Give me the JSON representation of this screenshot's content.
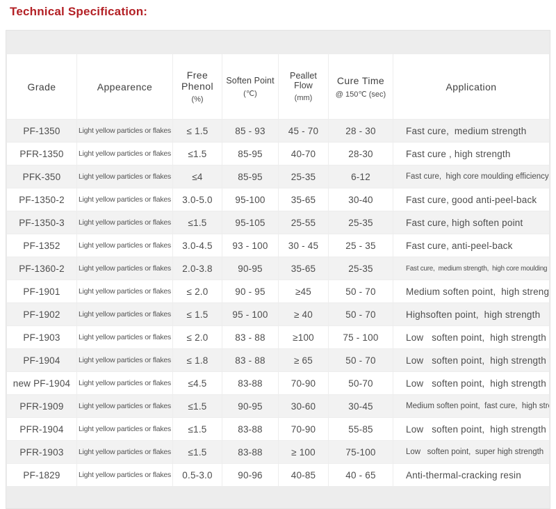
{
  "page": {
    "title": "Technical Specification:"
  },
  "colors": {
    "title_red": "#b32025",
    "panel_background": "#ededed",
    "row_alternate": "#f2f2f2",
    "row_white": "#ffffff",
    "text": "#4a4a4a"
  },
  "table": {
    "columns": [
      {
        "key": "grade",
        "label": "Grade",
        "unit": ""
      },
      {
        "key": "appearance",
        "label": "Appearence",
        "unit": ""
      },
      {
        "key": "free_phenol",
        "label": "Free Phenol",
        "unit": "(%)"
      },
      {
        "key": "soften_point",
        "label": "Soften Point",
        "unit": "(℃)"
      },
      {
        "key": "peallet_flow",
        "label": "Peallet Flow",
        "unit": "(mm)"
      },
      {
        "key": "cure_time",
        "label": "Cure Time",
        "unit": "@ 150℃ (sec)"
      },
      {
        "key": "application",
        "label": "Application",
        "unit": ""
      }
    ],
    "rows": [
      {
        "grade": "PF-1350",
        "appearance": "Light yellow particles or flakes",
        "free_phenol": "≤ 1.5",
        "soften_point": "85 - 93",
        "peallet_flow": "45 - 70",
        "cure_time": "28 - 30",
        "application": "Fast cure,  medium strength"
      },
      {
        "grade": "PFR-1350",
        "appearance": "Light yellow particles or flakes",
        "free_phenol": "≤1.5",
        "soften_point": "85-95",
        "peallet_flow": "40-70",
        "cure_time": "28-30",
        "application": "Fast cure , high strength"
      },
      {
        "grade": "PFK-350",
        "appearance": "Light yellow particles or flakes",
        "free_phenol": "≤4",
        "soften_point": "85-95",
        "peallet_flow": "25-35",
        "cure_time": "6-12",
        "application": "Fast cure,  high core moulding efficiency"
      },
      {
        "grade": "PF-1350-2",
        "appearance": "Light yellow particles or flakes",
        "free_phenol": "3.0-5.0",
        "soften_point": "95-100",
        "peallet_flow": "35-65",
        "cure_time": "30-40",
        "application": "Fast cure, good anti-peel-back"
      },
      {
        "grade": "PF-1350-3",
        "appearance": "Light yellow particles or flakes",
        "free_phenol": "≤1.5",
        "soften_point": "95-105",
        "peallet_flow": "25-55",
        "cure_time": "25-35",
        "application": "Fast cure, high soften point"
      },
      {
        "grade": "PF-1352",
        "appearance": "Light yellow particles or flakes",
        "free_phenol": "3.0-4.5",
        "soften_point": "93 - 100",
        "peallet_flow": "30 - 45",
        "cure_time": "25 - 35",
        "application": "Fast cure, anti-peel-back"
      },
      {
        "grade": "PF-1360-2",
        "appearance": "Light yellow particles or flakes",
        "free_phenol": "2.0-3.8",
        "soften_point": "90-95",
        "peallet_flow": "35-65",
        "cure_time": "25-35",
        "application": "Fast cure,  medium strength,  high core moulding efficiency"
      },
      {
        "grade": "PF-1901",
        "appearance": "Light yellow particles or flakes",
        "free_phenol": "≤ 2.0",
        "soften_point": "90 - 95",
        "peallet_flow": "≥45",
        "cure_time": "50 - 70",
        "application": "Medium soften point,  high strength"
      },
      {
        "grade": "PF-1902",
        "appearance": "Light yellow particles or flakes",
        "free_phenol": "≤ 1.5",
        "soften_point": "95 - 100",
        "peallet_flow": "≥ 40",
        "cure_time": "50 - 70",
        "application": "Highsoften point,  high strength"
      },
      {
        "grade": "PF-1903",
        "appearance": "Light yellow particles or flakes",
        "free_phenol": "≤ 2.0",
        "soften_point": "83 - 88",
        "peallet_flow": "≥100",
        "cure_time": "75 - 100",
        "application": "Low   soften point,  high strength"
      },
      {
        "grade": "PF-1904",
        "appearance": "Light yellow particles or flakes",
        "free_phenol": "≤ 1.8",
        "soften_point": "83 - 88",
        "peallet_flow": "≥ 65",
        "cure_time": "50 - 70",
        "application": "Low   soften point,  high strength"
      },
      {
        "grade": "new PF-1904",
        "appearance": "Light yellow particles or flakes",
        "free_phenol": "≤4.5",
        "soften_point": "83-88",
        "peallet_flow": "70-90",
        "cure_time": "50-70",
        "application": "Low   soften point,  high strength"
      },
      {
        "grade": "PFR-1909",
        "appearance": "Light yellow particles or flakes",
        "free_phenol": "≤1.5",
        "soften_point": "90-95",
        "peallet_flow": "30-60",
        "cure_time": "30-45",
        "application": "Medium soften point,  fast cure,  high strength"
      },
      {
        "grade": "PFR-1904",
        "appearance": "Light yellow particles or flakes",
        "free_phenol": "≤1.5",
        "soften_point": "83-88",
        "peallet_flow": "70-90",
        "cure_time": "55-85",
        "application": "Low   soften point,  high strength"
      },
      {
        "grade": "PFR-1903",
        "appearance": "Light yellow particles or flakes",
        "free_phenol": "≤1.5",
        "soften_point": "83-88",
        "peallet_flow": "≥ 100",
        "cure_time": "75-100",
        "application": "Low   soften point,  super high strength"
      },
      {
        "grade": "PF-1829",
        "appearance": "Light yellow particles or flakes",
        "free_phenol": "0.5-3.0",
        "soften_point": "90-96",
        "peallet_flow": "40-85",
        "cure_time": "40 - 65",
        "application": "Anti-thermal-cracking resin"
      }
    ]
  }
}
